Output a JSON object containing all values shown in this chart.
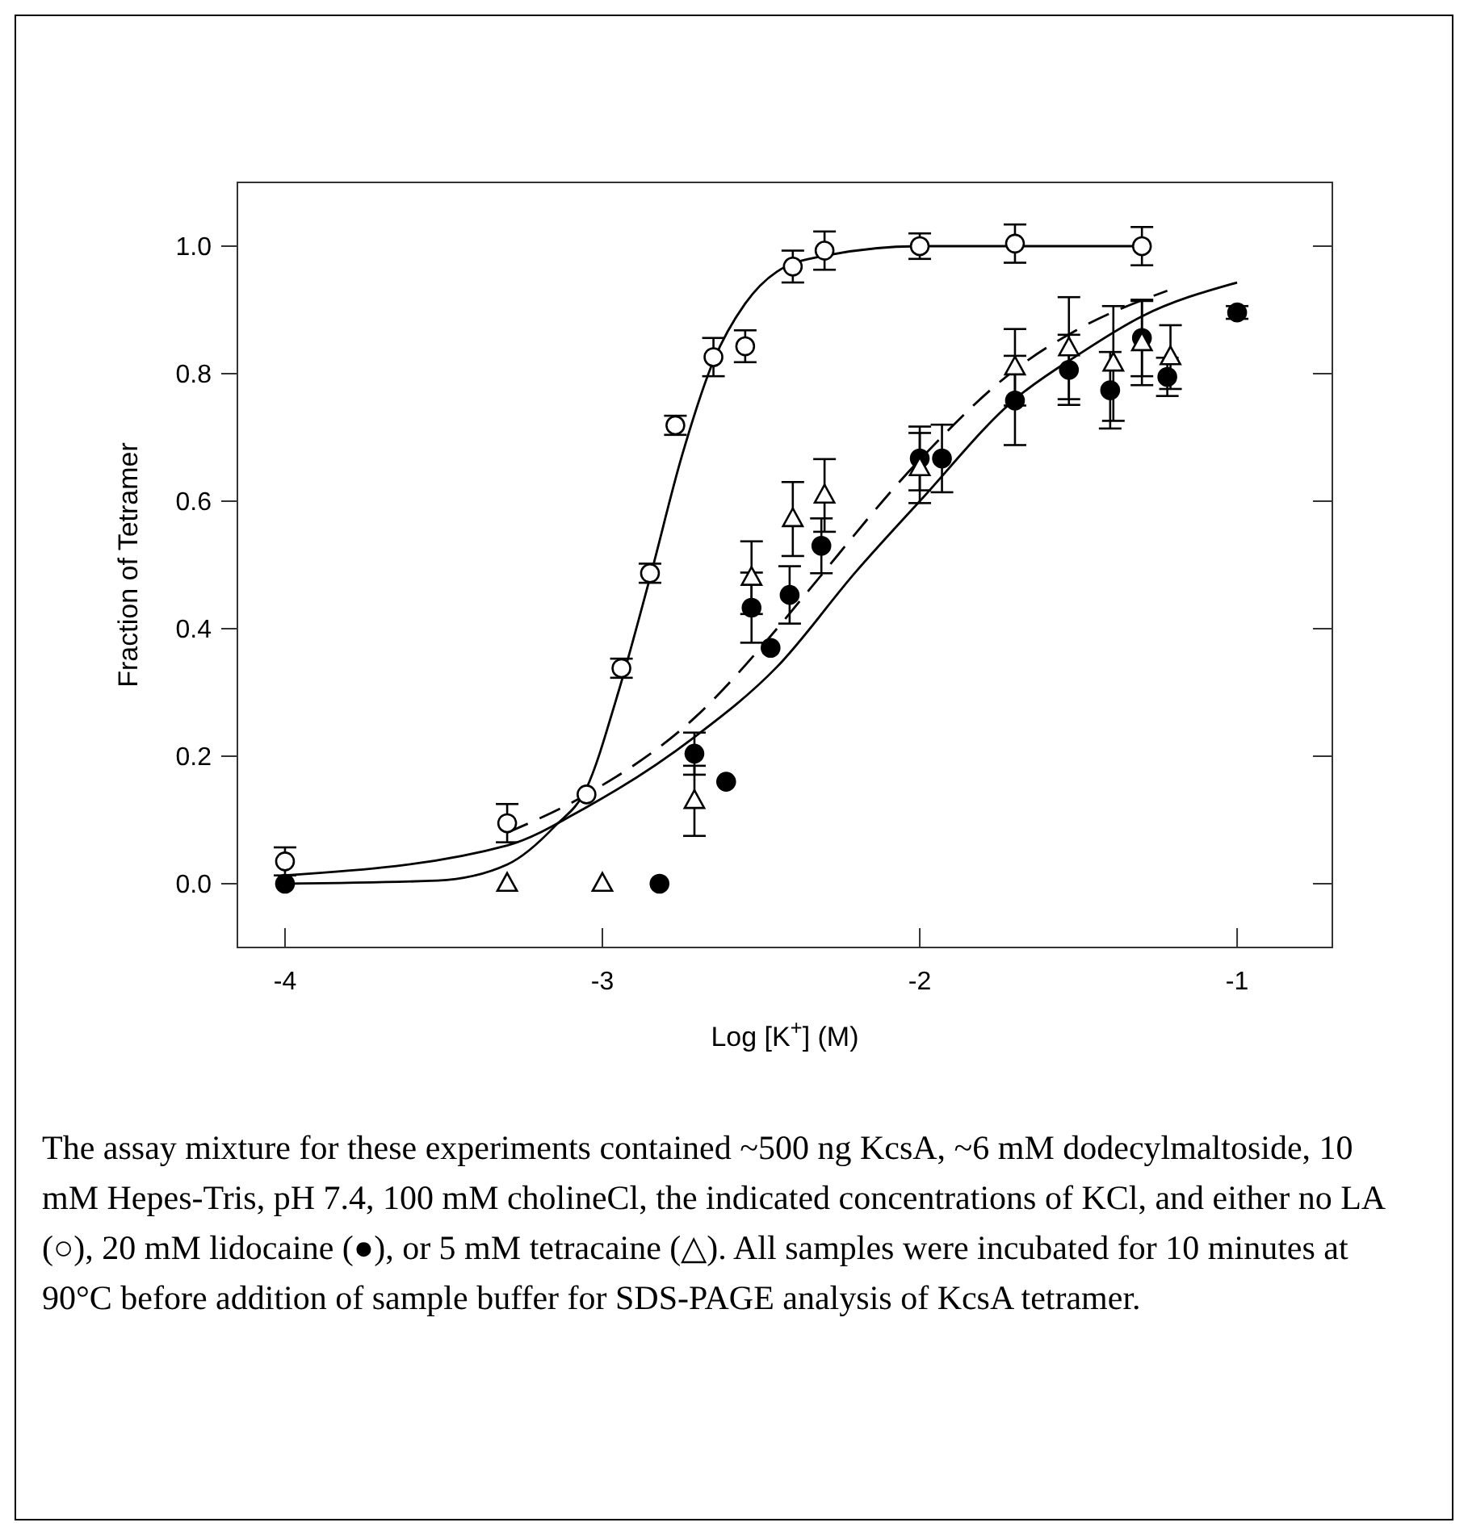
{
  "chart_data": {
    "type": "scatter",
    "ylabel": "Fraction of Tetramer",
    "xlabel": "Log [K$^{+}$]  (M)",
    "xlim": [
      -4.15,
      -0.7
    ],
    "ylim": [
      -0.1,
      1.1
    ],
    "xticks": [
      -4,
      -3,
      -2,
      -1
    ],
    "yticks": [
      {
        "value": 0,
        "label": "0.0"
      },
      {
        "value": 0.2,
        "label": "0.2"
      },
      {
        "value": 0.4,
        "label": "0.4"
      },
      {
        "value": 0.6,
        "label": "0.6"
      },
      {
        "value": 0.8,
        "label": "0.8"
      },
      {
        "value": 1,
        "label": "1.0"
      }
    ],
    "grid": false,
    "series": [
      {
        "type": "line",
        "x": [
          -4,
          -3.52,
          -3.3,
          -3.15,
          -3.05,
          -2.95,
          -2.85,
          -2.75,
          -2.65,
          -2.55,
          -2.45,
          -2.3,
          -2.0,
          -1.3
        ],
        "values": [
          0,
          0.005,
          0.03,
          0.09,
          0.15,
          0.3,
          0.48,
          0.67,
          0.82,
          0.91,
          0.96,
          0.985,
          1.0,
          1.0
        ],
        "color": "#000000",
        "line_style": "solid",
        "marker": "none"
      },
      {
        "type": "line",
        "x": [
          -4,
          -3.3,
          -3.05,
          -2.71,
          -2.45,
          -2.2,
          -2.0,
          -1.7,
          -1.5,
          -1.3,
          -1.0
        ],
        "values": [
          0.013,
          0.06,
          0.12,
          0.23,
          0.34,
          0.49,
          0.6,
          0.76,
          0.83,
          0.89,
          0.943
        ],
        "color": "#000000",
        "line_style": "solid",
        "marker": "none"
      },
      {
        "type": "line",
        "x": [
          -3.3,
          -3.05,
          -2.71,
          -2.45,
          -2.35,
          -2.0,
          -1.69,
          -1.5,
          -1.22
        ],
        "values": [
          0.08,
          0.14,
          0.26,
          0.4,
          0.46,
          0.665,
          0.81,
          0.87,
          0.93
        ],
        "color": "#000000",
        "line_style": "dashed",
        "marker": "none"
      },
      {
        "x": [
          -4.0,
          -3.3,
          -3.05,
          -2.94,
          -2.85,
          -2.77,
          -2.65,
          -2.55,
          -2.4,
          -2.3,
          -2.0,
          -1.7,
          -1.3
        ],
        "values": [
          0.035,
          0.095,
          0.14,
          0.338,
          0.487,
          0.719,
          0.826,
          0.843,
          0.968,
          0.993,
          1.0,
          1.004,
          1.0
        ],
        "errors": [
          0.022,
          0.03,
          null,
          0.015,
          0.015,
          0.015,
          0.03,
          0.025,
          0.025,
          0.03,
          0.02,
          0.03,
          0.03
        ],
        "color": "#ffffff",
        "marker": "circle"
      },
      {
        "x": [
          -4.0,
          -2.82,
          -2.71,
          -2.61,
          -2.53,
          -2.47,
          -2.41,
          -2.31,
          -2.0,
          -1.93,
          -1.7,
          -1.53,
          -1.4,
          -1.3,
          -1.22,
          -1.0
        ],
        "values": [
          0,
          0,
          0.204,
          0.16,
          0.433,
          0.37,
          0.453,
          0.53,
          0.667,
          0.667,
          0.758,
          0.806,
          0.774,
          0.856,
          0.795,
          0.896
        ],
        "errors": [
          null,
          null,
          0.033,
          null,
          0.055,
          null,
          0.045,
          0.043,
          0.05,
          0.053,
          0.07,
          0.055,
          0.06,
          0.06,
          0.03,
          0.01
        ],
        "color": "#000000",
        "marker": "circle"
      },
      {
        "x": [
          -3.3,
          -3.0,
          -2.71,
          -2.53,
          -2.4,
          -2.3,
          -2.0,
          -1.7,
          -1.53,
          -1.39,
          -1.3,
          -1.21
        ],
        "values": [
          0,
          0,
          0.13,
          0.48,
          0.572,
          0.609,
          0.652,
          0.81,
          0.84,
          0.816,
          0.848,
          0.826
        ],
        "errors": [
          null,
          null,
          0.055,
          0.057,
          0.058,
          0.057,
          0.055,
          0.06,
          0.08,
          0.09,
          0.066,
          0.05
        ],
        "color": "#ffffff",
        "marker": "triangle"
      }
    ],
    "annotations": [
      "The assay mixture for these experiments contained ~500 ng KcsA, ~6 mM dodecylmaltoside, 10 mM Hepes-Tris, pH 7.4, 100 mM cholineCl, the indicated concentrations of KCl, and either no LA (○), 20 mM lidocaine (●), or 5 mM tetracaine (△).  All samples were incubated for 10 minutes at 90°C before addition of sample buffer for SDS-PAGE analysis of KcsA tetramer."
    ]
  }
}
